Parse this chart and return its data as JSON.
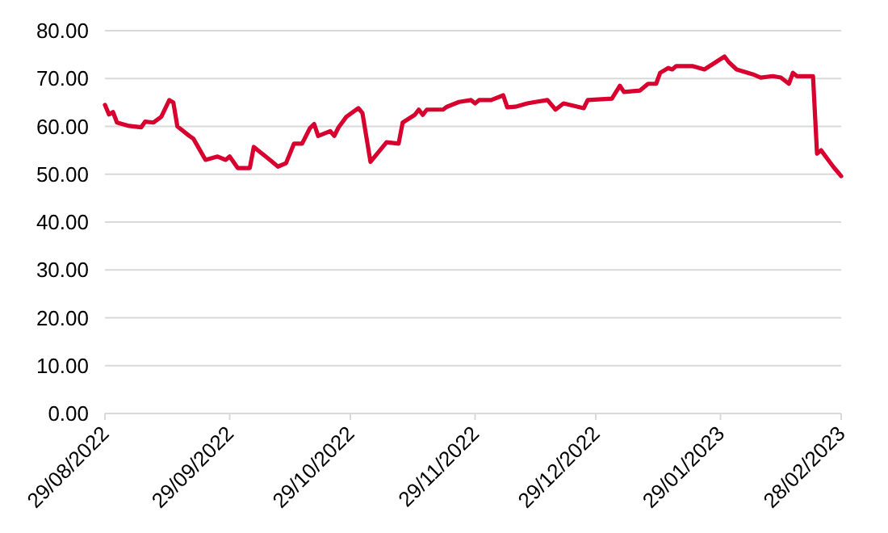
{
  "chart_data": {
    "type": "line",
    "xlim": [
      "2022-08-29",
      "2023-02-28"
    ],
    "xticks": [
      {
        "value": "2022-08-29",
        "label": "29/08/2022"
      },
      {
        "value": "2022-09-29",
        "label": "29/09/2022"
      },
      {
        "value": "2022-10-29",
        "label": "29/10/2022"
      },
      {
        "value": "2022-11-29",
        "label": "29/11/2022"
      },
      {
        "value": "2022-12-29",
        "label": "29/12/2022"
      },
      {
        "value": "2023-01-29",
        "label": "29/01/2023"
      },
      {
        "value": "2023-02-28",
        "label": "28/02/2023"
      }
    ],
    "ylim": [
      0,
      80
    ],
    "yticks": [
      {
        "value": 0,
        "label": "0.00"
      },
      {
        "value": 10,
        "label": "10.00"
      },
      {
        "value": 20,
        "label": "20.00"
      },
      {
        "value": 30,
        "label": "30.00"
      },
      {
        "value": 40,
        "label": "40.00"
      },
      {
        "value": 50,
        "label": "50.00"
      },
      {
        "value": 60,
        "label": "60.00"
      },
      {
        "value": 70,
        "label": "70.00"
      },
      {
        "value": 80,
        "label": "80.00"
      }
    ],
    "grid": "y",
    "marker": "none",
    "line_style": "solid",
    "series": [
      {
        "color": "#d7002e",
        "x": [
          "2022-08-29",
          "2022-08-30",
          "2022-08-31",
          "2022-09-01",
          "2022-09-04",
          "2022-09-07",
          "2022-09-08",
          "2022-09-10",
          "2022-09-12",
          "2022-09-14",
          "2022-09-15",
          "2022-09-16",
          "2022-09-19",
          "2022-09-20",
          "2022-09-23",
          "2022-09-26",
          "2022-09-28",
          "2022-09-29",
          "2022-10-01",
          "2022-10-04",
          "2022-10-05",
          "2022-10-09",
          "2022-10-11",
          "2022-10-13",
          "2022-10-15",
          "2022-10-17",
          "2022-10-19",
          "2022-10-20",
          "2022-10-21",
          "2022-10-24",
          "2022-10-25",
          "2022-10-26",
          "2022-10-28",
          "2022-10-31",
          "2022-11-01",
          "2022-11-03",
          "2022-11-07",
          "2022-11-10",
          "2022-11-11",
          "2022-11-14",
          "2022-11-15",
          "2022-11-16",
          "2022-11-17",
          "2022-11-21",
          "2022-11-22",
          "2022-11-25",
          "2022-11-28",
          "2022-11-29",
          "2022-11-30",
          "2022-12-03",
          "2022-12-06",
          "2022-12-07",
          "2022-12-09",
          "2022-12-12",
          "2022-12-14",
          "2022-12-17",
          "2022-12-19",
          "2022-12-21",
          "2022-12-26",
          "2022-12-27",
          "2023-01-02",
          "2023-01-04",
          "2023-01-05",
          "2023-01-09",
          "2023-01-11",
          "2023-01-13",
          "2023-01-14",
          "2023-01-16",
          "2023-01-17",
          "2023-01-18",
          "2023-01-22",
          "2023-01-25",
          "2023-01-30",
          "2023-01-31",
          "2023-02-02",
          "2023-02-06",
          "2023-02-08",
          "2023-02-11",
          "2023-02-13",
          "2023-02-15",
          "2023-02-16",
          "2023-02-17",
          "2023-02-21",
          "2023-02-22",
          "2023-02-23",
          "2023-02-26",
          "2023-02-28"
        ],
        "values": [
          64.5,
          62.5,
          63,
          60.8,
          60.1,
          59.8,
          61,
          60.8,
          62,
          65.5,
          65,
          60,
          58,
          57.4,
          53,
          53.7,
          53,
          53.7,
          51.3,
          51.3,
          55.7,
          53,
          51.6,
          52.3,
          56.4,
          56.4,
          59.7,
          60.5,
          58,
          59,
          58,
          59.7,
          62,
          63.8,
          62.8,
          52.6,
          56.7,
          56.4,
          60.8,
          62.4,
          63.5,
          62.4,
          63.5,
          63.5,
          64.1,
          65.1,
          65.5,
          64.8,
          65.5,
          65.5,
          66.5,
          64,
          64.1,
          64.8,
          65.1,
          65.5,
          63.5,
          64.8,
          63.8,
          65.5,
          65.8,
          68.5,
          67.2,
          67.5,
          68.9,
          68.9,
          71.2,
          72.2,
          71.9,
          72.6,
          72.6,
          71.9,
          74.6,
          73.5,
          71.9,
          70.9,
          70.2,
          70.5,
          70.2,
          68.9,
          71.2,
          70.5,
          70.5,
          54.3,
          55,
          51.6,
          49.6
        ]
      }
    ]
  }
}
